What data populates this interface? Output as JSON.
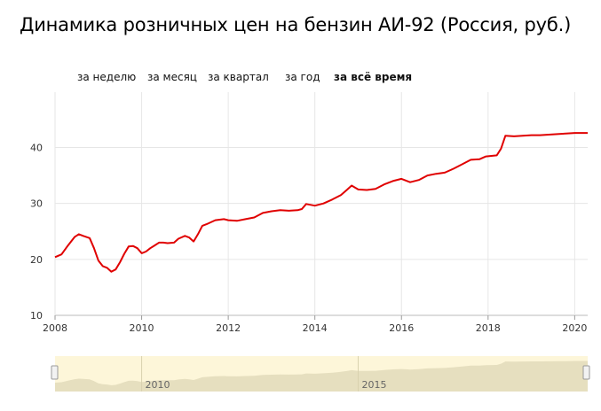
{
  "title": "Динамика розничных цен на бензин АИ-92 (Россия, руб.)",
  "tabs": [
    {
      "label": "за неделю",
      "active": false
    },
    {
      "label": "за месяц",
      "active": false
    },
    {
      "label": "за квартал",
      "active": false
    },
    {
      "label": "за год",
      "active": false
    },
    {
      "label": "за всё время",
      "active": true
    }
  ],
  "colors": {
    "line": "#e00000",
    "grid": "#e6e6e6",
    "navigator_fill": "#e6dfbf",
    "navigator_bg": "#fdf6d9"
  },
  "chart_data": {
    "type": "line",
    "title": "Динамика розничных цен на бензин АИ-92 (Россия, руб.)",
    "xlabel": "",
    "ylabel": "",
    "xlim": [
      2008.0,
      2020.3
    ],
    "ylim": [
      10,
      48
    ],
    "x_ticks": [
      2008,
      2010,
      2012,
      2014,
      2016,
      2018,
      2020
    ],
    "y_ticks": [
      10,
      20,
      30,
      40
    ],
    "grid": true,
    "legend": "none",
    "series": [
      {
        "x": [
          2008.0,
          2008.15,
          2008.3,
          2008.45,
          2008.55,
          2008.65,
          2008.8,
          2008.9,
          2009.0,
          2009.1,
          2009.2,
          2009.3,
          2009.4,
          2009.5,
          2009.6,
          2009.7,
          2009.8,
          2009.9,
          2010.0,
          2010.1,
          2010.2,
          2010.3,
          2010.4,
          2010.5,
          2010.6,
          2010.75,
          2010.85,
          2011.0,
          2011.1,
          2011.2,
          2011.3,
          2011.4,
          2011.5,
          2011.7,
          2011.9,
          2012.0,
          2012.2,
          2012.4,
          2012.6,
          2012.8,
          2013.0,
          2013.2,
          2013.4,
          2013.6,
          2013.7,
          2013.8,
          2014.0,
          2014.2,
          2014.4,
          2014.6,
          2014.75,
          2014.85,
          2015.0,
          2015.2,
          2015.4,
          2015.6,
          2015.8,
          2016.0,
          2016.1,
          2016.2,
          2016.4,
          2016.6,
          2016.8,
          2017.0,
          2017.2,
          2017.4,
          2017.6,
          2017.8,
          2017.95,
          2018.2,
          2018.3,
          2018.4,
          2018.6,
          2018.8,
          2019.0,
          2019.2,
          2019.4,
          2019.6,
          2019.8,
          2020.0,
          2020.3
        ],
        "y": [
          20.4,
          20.9,
          22.5,
          24.0,
          24.5,
          24.2,
          23.8,
          22.0,
          19.8,
          18.8,
          18.5,
          17.8,
          18.2,
          19.5,
          21.0,
          22.3,
          22.4,
          22.0,
          21.1,
          21.4,
          22.0,
          22.5,
          23.0,
          23.0,
          22.9,
          23.0,
          23.7,
          24.2,
          23.9,
          23.2,
          24.5,
          26.0,
          26.3,
          27.0,
          27.2,
          27.0,
          26.9,
          27.2,
          27.5,
          28.3,
          28.6,
          28.8,
          28.7,
          28.8,
          29.0,
          29.9,
          29.6,
          30.0,
          30.7,
          31.5,
          32.5,
          33.2,
          32.5,
          32.4,
          32.6,
          33.4,
          34.0,
          34.4,
          34.1,
          33.8,
          34.2,
          35.0,
          35.3,
          35.5,
          36.2,
          37.0,
          37.8,
          37.9,
          38.4,
          38.6,
          39.8,
          42.1,
          42.0,
          42.1,
          42.2,
          42.2,
          42.3,
          42.4,
          42.5,
          42.6,
          42.6
        ]
      }
    ],
    "navigator": {
      "x_ticks": [
        2010,
        2015
      ]
    }
  }
}
